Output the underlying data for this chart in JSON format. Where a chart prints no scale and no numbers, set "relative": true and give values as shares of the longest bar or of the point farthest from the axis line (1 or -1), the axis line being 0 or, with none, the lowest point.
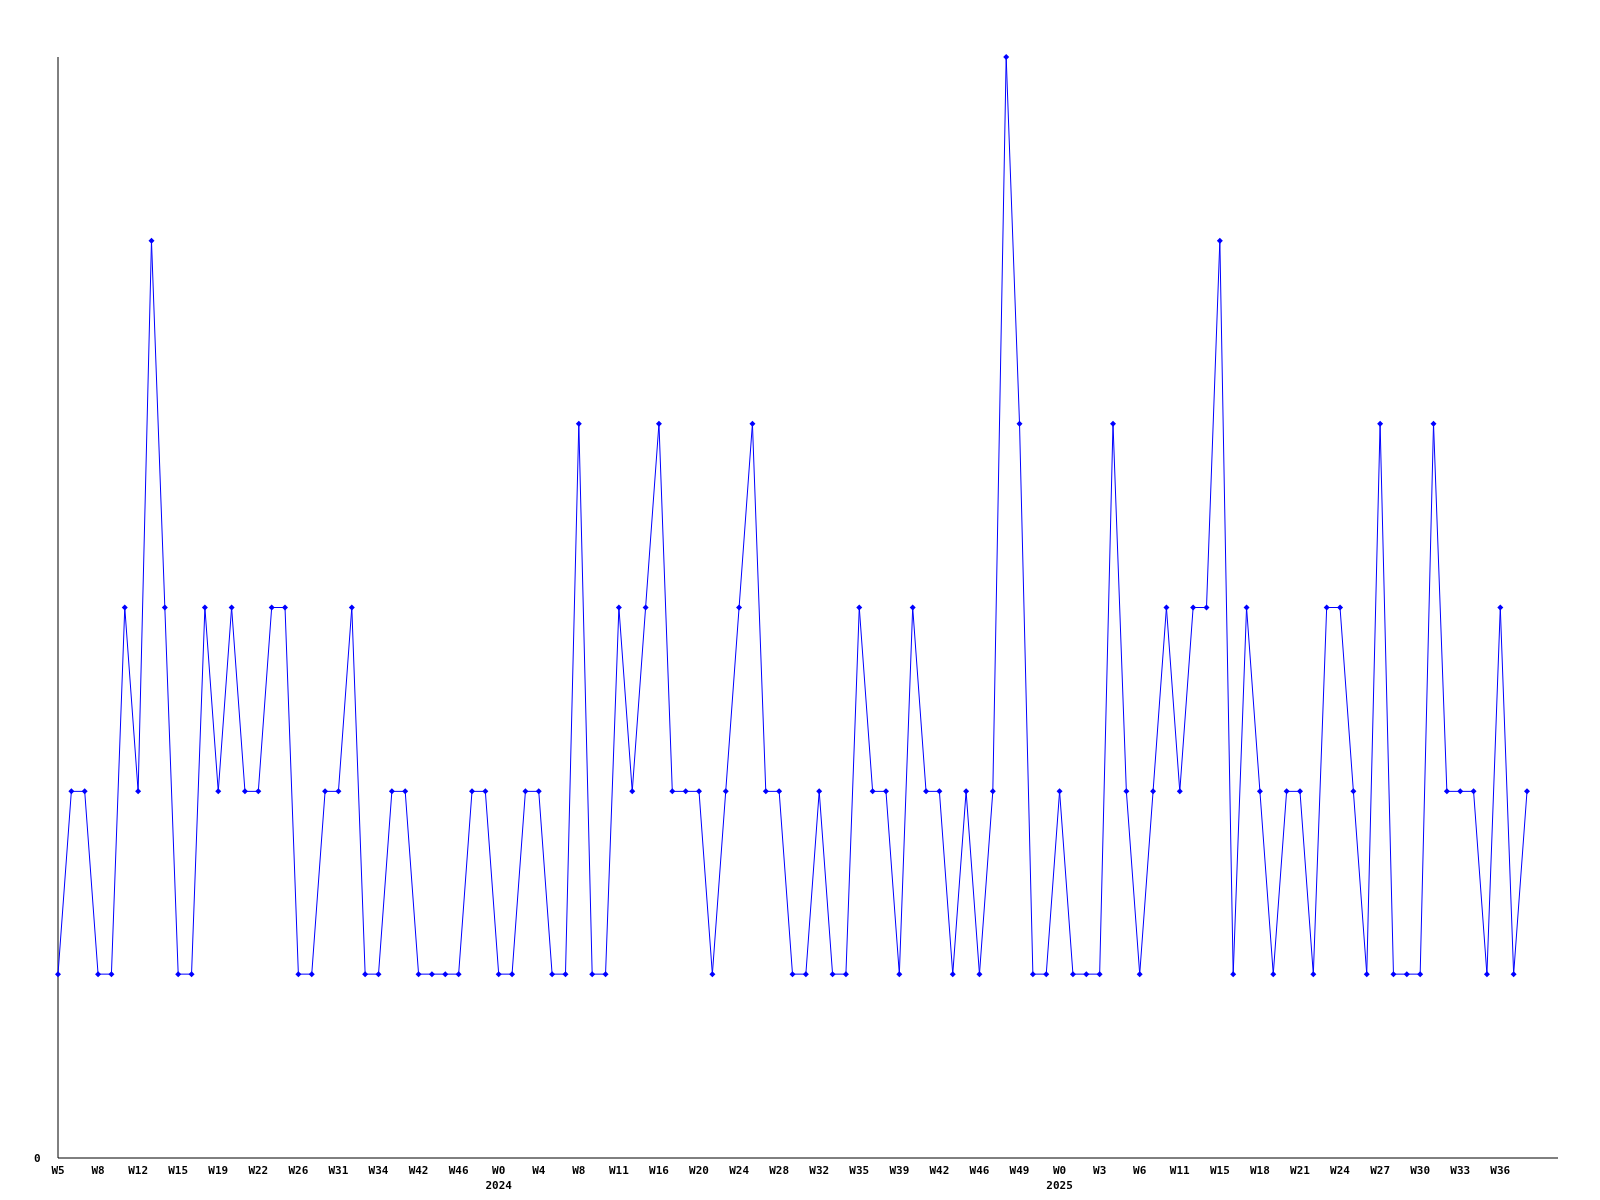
{
  "chart_data": {
    "type": "line",
    "relative": true,
    "marker": "diamond",
    "line_style": "solid",
    "annotations": [
      "0"
    ],
    "categories": [
      "W5",
      null,
      null,
      "W8",
      null,
      null,
      "W12",
      null,
      null,
      "W15",
      null,
      null,
      "W19",
      null,
      null,
      "W22",
      null,
      null,
      "W26",
      null,
      null,
      "W31",
      null,
      null,
      "W34",
      null,
      null,
      "W42",
      null,
      null,
      "W46",
      null,
      null,
      "W0\n2024",
      null,
      null,
      "W4",
      null,
      null,
      "W8",
      null,
      null,
      "W11",
      null,
      null,
      "W16",
      null,
      null,
      "W20",
      null,
      null,
      "W24",
      null,
      null,
      "W28",
      null,
      null,
      "W32",
      null,
      null,
      "W35",
      null,
      null,
      "W39",
      null,
      null,
      "W42",
      null,
      null,
      "W46",
      null,
      null,
      "W49",
      null,
      null,
      "W0\n2025",
      null,
      null,
      "W3",
      null,
      null,
      "W6",
      null,
      null,
      "W11",
      null,
      null,
      "W15",
      null,
      null,
      "W18",
      null,
      null,
      "W21",
      null,
      null,
      "W24",
      null,
      null,
      "W27",
      null,
      null,
      "W30",
      null,
      null,
      "W33",
      null,
      null,
      "W36",
      null,
      null
    ],
    "series": [
      {
        "color": "#0000ff",
        "values": [
          0.167,
          0.333,
          0.333,
          0.167,
          0.167,
          0.5,
          0.333,
          0.833,
          0.5,
          0.167,
          0.167,
          0.5,
          0.333,
          0.5,
          0.333,
          0.333,
          0.5,
          0.5,
          0.167,
          0.167,
          0.333,
          0.333,
          0.5,
          0.167,
          0.167,
          0.333,
          0.333,
          0.167,
          0.167,
          0.167,
          0.167,
          0.333,
          0.333,
          0.167,
          0.167,
          0.333,
          0.333,
          0.167,
          0.167,
          0.667,
          0.167,
          0.167,
          0.5,
          0.333,
          0.5,
          0.667,
          0.333,
          0.333,
          0.333,
          0.167,
          0.333,
          0.5,
          0.667,
          0.333,
          0.333,
          0.167,
          0.167,
          0.333,
          0.167,
          0.167,
          0.5,
          0.333,
          0.333,
          0.167,
          0.5,
          0.333,
          0.333,
          0.167,
          0.333,
          0.167,
          0.333,
          1,
          0.667,
          0.167,
          0.167,
          0.333,
          0.167,
          0.167,
          0.167,
          0.667,
          0.333,
          0.167,
          0.333,
          0.5,
          0.333,
          0.5,
          0.5,
          0.833,
          0.167,
          0.5,
          0.333,
          0.167,
          0.333,
          0.333,
          0.167,
          0.5,
          0.5,
          0.333,
          0.167,
          0.667,
          0.167,
          0.167,
          0.167,
          0.667,
          0.333,
          0.333,
          0.333,
          0.167,
          0.5,
          0.167,
          0.333
        ]
      }
    ]
  }
}
